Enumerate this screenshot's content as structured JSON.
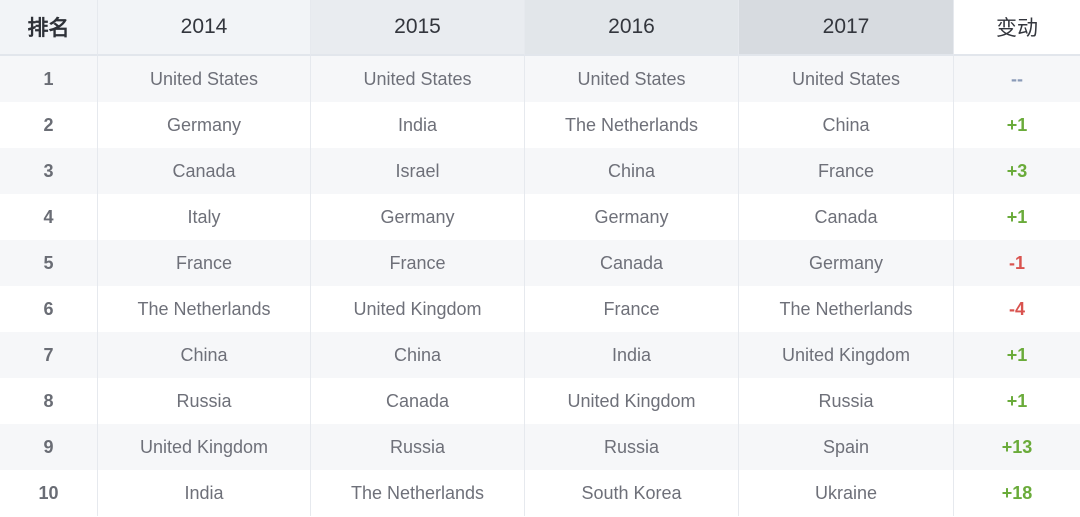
{
  "table": {
    "headers": [
      "排名",
      "2014",
      "2015",
      "2016",
      "2017",
      "变动"
    ],
    "rows": [
      {
        "rank": "1",
        "y2014": "United States",
        "y2015": "United States",
        "y2016": "United States",
        "y2017": "United States",
        "change": "--"
      },
      {
        "rank": "2",
        "y2014": "Germany",
        "y2015": "India",
        "y2016": "The Netherlands",
        "y2017": "China",
        "change": "+1"
      },
      {
        "rank": "3",
        "y2014": "Canada",
        "y2015": "Israel",
        "y2016": "China",
        "y2017": "France",
        "change": "+3"
      },
      {
        "rank": "4",
        "y2014": "Italy",
        "y2015": "Germany",
        "y2016": "Germany",
        "y2017": "Canada",
        "change": "+1"
      },
      {
        "rank": "5",
        "y2014": "France",
        "y2015": "France",
        "y2016": "Canada",
        "y2017": "Germany",
        "change": "-1"
      },
      {
        "rank": "6",
        "y2014": "The Netherlands",
        "y2015": "United Kingdom",
        "y2016": "France",
        "y2017": "The Netherlands",
        "change": "-4"
      },
      {
        "rank": "7",
        "y2014": "China",
        "y2015": "China",
        "y2016": "India",
        "y2017": "United Kingdom",
        "change": "+1"
      },
      {
        "rank": "8",
        "y2014": "Russia",
        "y2015": "Canada",
        "y2016": "United Kingdom",
        "y2017": "Russia",
        "change": "+1"
      },
      {
        "rank": "9",
        "y2014": "United Kingdom",
        "y2015": "Russia",
        "y2016": "Russia",
        "y2017": "Spain",
        "change": "+13"
      },
      {
        "rank": "10",
        "y2014": "India",
        "y2015": "The Netherlands",
        "y2016": "South Korea",
        "y2017": "Ukraine",
        "change": "+18"
      }
    ]
  },
  "colors": {
    "positive": "#6aab3a",
    "negative": "#d9534f",
    "neutral": "#8a9bb8"
  }
}
